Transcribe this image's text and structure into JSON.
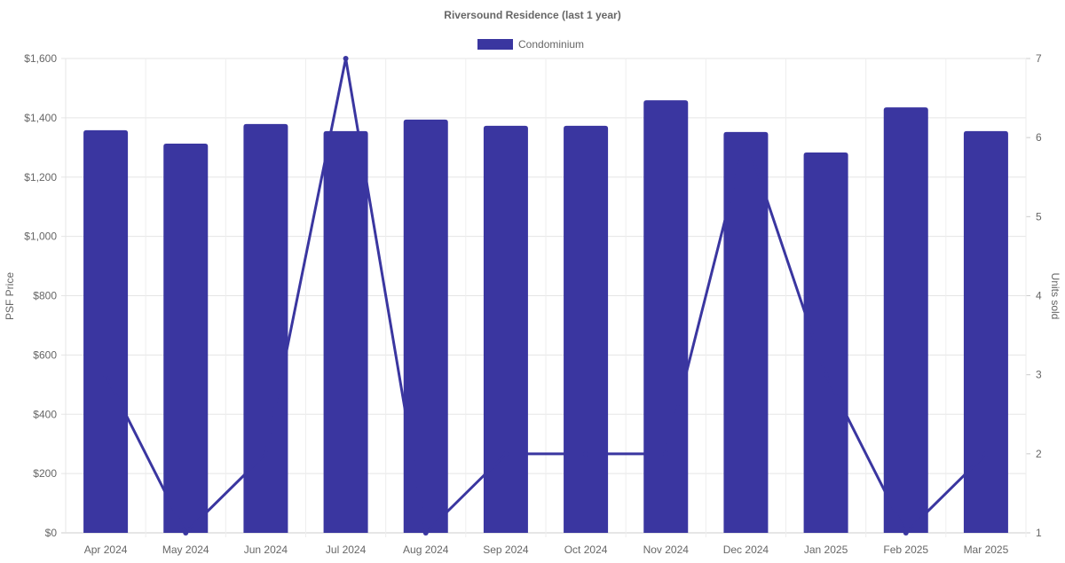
{
  "chart_data": {
    "type": "bar",
    "title": "Riversound Residence (last 1 year)",
    "categories": [
      "Apr 2024",
      "May 2024",
      "Jun 2024",
      "Jul 2024",
      "Aug 2024",
      "Sep 2024",
      "Oct 2024",
      "Nov 2024",
      "Dec 2024",
      "Jan 2025",
      "Feb 2025",
      "Mar 2025"
    ],
    "series": [
      {
        "name": "Condominium",
        "type": "bar",
        "axis": "left",
        "values": [
          1358,
          1313,
          1379,
          1355,
          1394,
          1373,
          1373,
          1459,
          1352,
          1283,
          1435,
          1355
        ]
      },
      {
        "type": "line",
        "axis": "right",
        "values": [
          3,
          1,
          2,
          7,
          1,
          2,
          2,
          2,
          6,
          3,
          1,
          2
        ]
      }
    ],
    "ylabel": "PSF Price",
    "y2label": "Units sold",
    "ylim": [
      0,
      1600
    ],
    "y2lim": [
      1,
      7
    ],
    "yticks": [
      "$0",
      "$200",
      "$400",
      "$600",
      "$800",
      "$1,000",
      "$1,200",
      "$1,400",
      "$1,600"
    ],
    "y2ticks": [
      "1",
      "2",
      "3",
      "4",
      "5",
      "6",
      "7"
    ],
    "grid": true,
    "legend": "top-center",
    "color": "#3a36a0"
  }
}
